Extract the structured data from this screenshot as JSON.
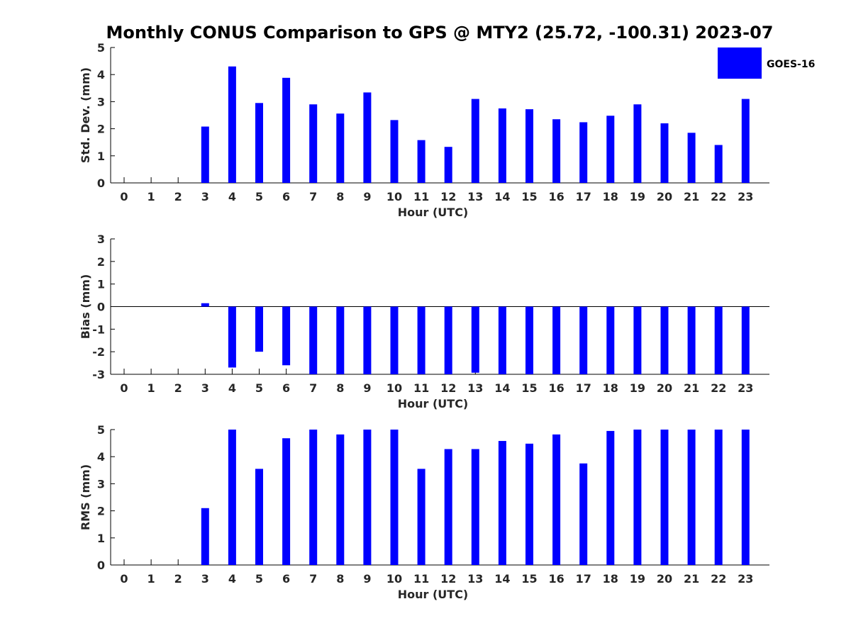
{
  "chart_data": {
    "title": "Monthly CONUS Comparison to GPS @ MTY2 (25.72, -100.31) 2023-07",
    "bar_color": "#0000ff",
    "legend": {
      "label": "GOES-16",
      "placement": "top-right"
    },
    "panels": [
      {
        "type": "bar",
        "ylabel": "Std. Dev. (mm)",
        "xlabel": "Hour (UTC)",
        "ylim": [
          0,
          5
        ],
        "yticks": [
          0,
          1,
          2,
          3,
          4,
          5
        ],
        "categories": [
          "0",
          "1",
          "2",
          "3",
          "4",
          "5",
          "6",
          "7",
          "8",
          "9",
          "10",
          "11",
          "12",
          "13",
          "14",
          "15",
          "16",
          "17",
          "18",
          "19",
          "20",
          "21",
          "22",
          "23"
        ],
        "series": [
          {
            "name": "GOES-16",
            "values": [
              null,
              null,
              null,
              2.08,
              4.3,
              2.95,
              3.88,
              2.9,
              2.56,
              3.34,
              2.32,
              1.58,
              1.33,
              3.1,
              2.75,
              2.72,
              2.35,
              2.24,
              2.48,
              2.9,
              2.2,
              1.85,
              1.4,
              3.1
            ]
          }
        ]
      },
      {
        "type": "bar",
        "ylabel": "Bias (mm)",
        "xlabel": "Hour (UTC)",
        "ylim": [
          -3,
          3
        ],
        "yticks": [
          -3,
          -2,
          -1,
          0,
          1,
          2,
          3
        ],
        "categories": [
          "0",
          "1",
          "2",
          "3",
          "4",
          "5",
          "6",
          "7",
          "8",
          "9",
          "10",
          "11",
          "12",
          "13",
          "14",
          "15",
          "16",
          "17",
          "18",
          "19",
          "20",
          "21",
          "22",
          "23"
        ],
        "series": [
          {
            "name": "GOES-16",
            "values": [
              null,
              null,
              null,
              0.15,
              -2.7,
              -2.0,
              -2.6,
              -3.0,
              -3.0,
              -3.0,
              -3.0,
              -3.0,
              -3.0,
              -2.93,
              -3.0,
              -3.0,
              -3.0,
              -3.0,
              -3.0,
              -3.0,
              -3.0,
              -3.0,
              -3.0,
              -3.0
            ]
          }
        ]
      },
      {
        "type": "bar",
        "ylabel": "RMS (mm)",
        "xlabel": "Hour (UTC)",
        "ylim": [
          0,
          5
        ],
        "yticks": [
          0,
          1,
          2,
          3,
          4,
          5
        ],
        "categories": [
          "0",
          "1",
          "2",
          "3",
          "4",
          "5",
          "6",
          "7",
          "8",
          "9",
          "10",
          "11",
          "12",
          "13",
          "14",
          "15",
          "16",
          "17",
          "18",
          "19",
          "20",
          "21",
          "22",
          "23"
        ],
        "series": [
          {
            "name": "GOES-16",
            "values": [
              null,
              null,
              null,
              2.1,
              5.0,
              3.55,
              4.68,
              5.0,
              4.82,
              5.0,
              5.0,
              3.55,
              4.28,
              4.28,
              4.58,
              4.48,
              4.82,
              3.75,
              4.95,
              5.0,
              5.0,
              5.0,
              5.0,
              5.0
            ]
          }
        ]
      }
    ]
  }
}
